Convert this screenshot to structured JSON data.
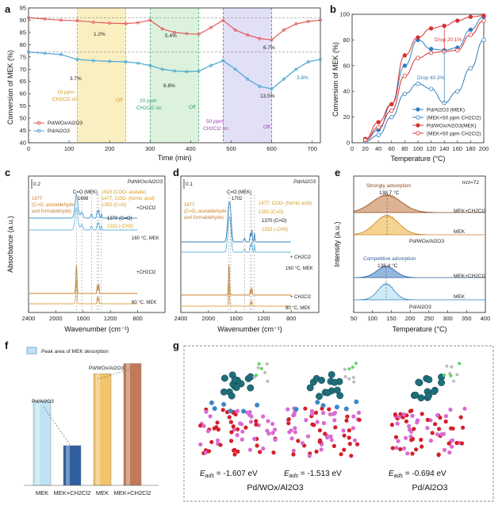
{
  "panel_a": {
    "letter": "a",
    "ylabel": "Conversion of MEK (%)",
    "xlabel": "Time (min)",
    "legend": [
      "Pd/WOx/Al2O3",
      "Pd/Al2O3"
    ],
    "regions": [
      {
        "label_line1": "10 ppm",
        "label_line2": "CH2Cl2 on",
        "off": "Off",
        "color": "#f6e8a6"
      },
      {
        "label_line1": "20 ppm",
        "label_line2": "CH2Cl2 on",
        "off": "Off",
        "color": "#cdeccf"
      },
      {
        "label_line1": "50 ppm",
        "label_line2": "CH2Cl2 on",
        "off": "Off",
        "color": "#d6d3f2"
      }
    ],
    "drops_top": [
      "1.2%",
      "5.4%",
      "6.7%"
    ],
    "drops_bottom": [
      "3.7%",
      "6.8%",
      "13.5%",
      "3.8%"
    ],
    "chart_data": {
      "type": "line",
      "x_range": [
        0,
        720
      ],
      "y_range": [
        40,
        95
      ],
      "xticks": [
        0,
        100,
        200,
        300,
        400,
        500,
        600,
        700
      ],
      "yticks": [
        40,
        45,
        50,
        55,
        60,
        65,
        70,
        75,
        80,
        85,
        90,
        95
      ],
      "series": [
        {
          "name": "Pd/WOx/Al2O3",
          "color": "#e05a5a",
          "x": [
            0,
            40,
            80,
            120,
            160,
            200,
            240,
            270,
            300,
            330,
            360,
            390,
            420,
            450,
            480,
            510,
            540,
            570,
            600,
            630,
            660,
            690,
            720
          ],
          "y": [
            91,
            90.5,
            90,
            89.8,
            89.2,
            88.8,
            88.6,
            89,
            90,
            86.5,
            85,
            84.5,
            84.3,
            87,
            90,
            86,
            84,
            82.5,
            82,
            86,
            88.5,
            89.5,
            90
          ]
        },
        {
          "name": "Pd/Al2O3",
          "color": "#4aa6d1",
          "x": [
            0,
            40,
            80,
            120,
            160,
            200,
            240,
            270,
            300,
            330,
            360,
            390,
            420,
            450,
            480,
            510,
            540,
            570,
            600,
            630,
            660,
            690,
            720
          ],
          "y": [
            77,
            76.5,
            76,
            74,
            73.5,
            73.2,
            73,
            72.5,
            71.5,
            70,
            69.3,
            69,
            69.2,
            71.5,
            73.5,
            70,
            66,
            63,
            62,
            66,
            70,
            73,
            74
          ]
        }
      ]
    }
  },
  "panel_b": {
    "letter": "b",
    "ylabel": "Conversion of MEK (%)",
    "xlabel": "Temperature (°C)",
    "drop1": "Drop 20.1%",
    "drop2": "Drop 40.3%",
    "chart_data": {
      "type": "line",
      "x_range": [
        0,
        200
      ],
      "y_range": [
        0,
        100
      ],
      "xticks": [
        0,
        20,
        40,
        60,
        80,
        100,
        120,
        140,
        160,
        180,
        200
      ],
      "yticks": [
        0,
        20,
        40,
        60,
        80,
        100
      ],
      "series": [
        {
          "name": "Pd/Al2O3 (MEK)",
          "color": "#2f7fbf",
          "filled": true,
          "x": [
            20,
            40,
            60,
            80,
            100,
            120,
            140,
            160,
            180,
            200
          ],
          "y": [
            2,
            10,
            30,
            60,
            80,
            73,
            72,
            74,
            88,
            98
          ]
        },
        {
          "name": "(MEK+50 ppm CH2Cl2)",
          "color": "#2f7fbf",
          "filled": false,
          "x": [
            20,
            40,
            60,
            80,
            100,
            120,
            140,
            160,
            180,
            200
          ],
          "y": [
            1,
            6,
            20,
            38,
            46,
            42,
            31,
            40,
            58,
            80
          ]
        },
        {
          "name": "Pd/WOx/Al2O3(MEK)",
          "color": "#d93030",
          "filled": true,
          "x": [
            20,
            40,
            60,
            80,
            100,
            120,
            140,
            160,
            180,
            200
          ],
          "y": [
            3,
            16,
            30,
            68,
            82,
            89,
            91,
            95,
            98,
            99
          ]
        },
        {
          "name": "(MEK+50 ppm CH2Cl2)",
          "color": "#d93030",
          "filled": false,
          "x": [
            20,
            40,
            60,
            80,
            100,
            120,
            140,
            160,
            180,
            200
          ],
          "y": [
            2,
            12,
            25,
            52,
            66,
            70,
            71,
            72,
            84,
            95
          ]
        }
      ]
    }
  },
  "panel_c": {
    "letter": "c",
    "catalyst": "Pd/WOx/Al2O3",
    "scale": "0.2",
    "ylabel": "Absorbance (a.u.)",
    "xlabel": "Wavenumber (cm⁻¹)",
    "xticks": [
      "2400",
      "2000",
      "1600",
      "1200",
      "800"
    ],
    "peaks": [
      {
        "text": "C=O (MEK)"
      },
      {
        "text": "1698"
      },
      {
        "text": "1620 (COO- acetate)"
      },
      {
        "text": "1477, COO- (formic acid)"
      },
      {
        "text": "1392 (C=O)"
      },
      {
        "text": "1677"
      },
      {
        "text": "(C=O, acetaldehyde"
      },
      {
        "text": "and formaldehyde)"
      },
      {
        "text": "1370 (C=O)"
      },
      {
        "text": "1332 (-CH3)"
      }
    ],
    "traces": [
      "+CH2Cl2",
      "160 °C, MEK",
      "+CH2Cl2",
      "80 °C, MEK"
    ]
  },
  "panel_d": {
    "letter": "d",
    "catalyst": "Pd/Al2O3",
    "scale": "0.1",
    "xlabel": "Wavenumber (cm⁻¹)",
    "xticks": [
      "2400",
      "2000",
      "1600",
      "1200",
      "800"
    ],
    "peaks": [
      {
        "text": "C=O (MEK)"
      },
      {
        "text": "1702"
      },
      {
        "text": "1677"
      },
      {
        "text": "(C=O, acetaldehyde"
      },
      {
        "text": "and formaldehyde)"
      },
      {
        "text": "1477, COO- (formic acid)"
      },
      {
        "text": "1392 (C=O)"
      },
      {
        "text": "1370 (C=O)"
      },
      {
        "text": "1332 (-CH3)"
      }
    ],
    "traces": [
      "+ CH2Cl2",
      "160 °C, MEK",
      "+ CH2Cl2",
      "80 °C, MEK"
    ]
  },
  "panel_e": {
    "letter": "e",
    "mz": "m/z=72",
    "ylabel": "Intensity (a.u.)",
    "xlabel": "Temperature (°C)",
    "xticks": [
      "50",
      "100",
      "150",
      "200",
      "250",
      "300",
      "350",
      "400"
    ],
    "strong": "Strongly adsorption",
    "strong_temp": "138.7 °C",
    "compet": "Competitive adsorption",
    "compet_temp": "136.4 °C",
    "traces": [
      "MEK+CH2Cl2",
      "MEK",
      "Pd/WOx/Al2O3",
      "MEK+CH2Cl2",
      "MEK",
      "Pd/Al2O3"
    ]
  },
  "panel_f": {
    "letter": "f",
    "legend": "Peak area of MEK desorption",
    "label_pd": "Pd/Al2O3",
    "label_pdw": "Pd/WOx/Al2O3",
    "chart_data": {
      "type": "bar",
      "categories": [
        "MEK",
        "MEK+CH2Cl2",
        "MEK",
        "MEK+CH2Cl2"
      ],
      "values": [
        1.0,
        0.47,
        1.32,
        1.44
      ],
      "colors": [
        "#bfe3f4",
        "#2f5f9e",
        "#f2c46b",
        "#c07a5a"
      ]
    }
  },
  "panel_g": {
    "letter": "g",
    "energies": [
      "-1.607 eV",
      "-1.513 eV",
      "-0.694 eV"
    ],
    "eads_prefix": "E",
    "eads_sub": "ads",
    "eq": " = ",
    "captions": [
      "Pd/WOx/Al2O3",
      "Pd/Al2O3"
    ]
  }
}
